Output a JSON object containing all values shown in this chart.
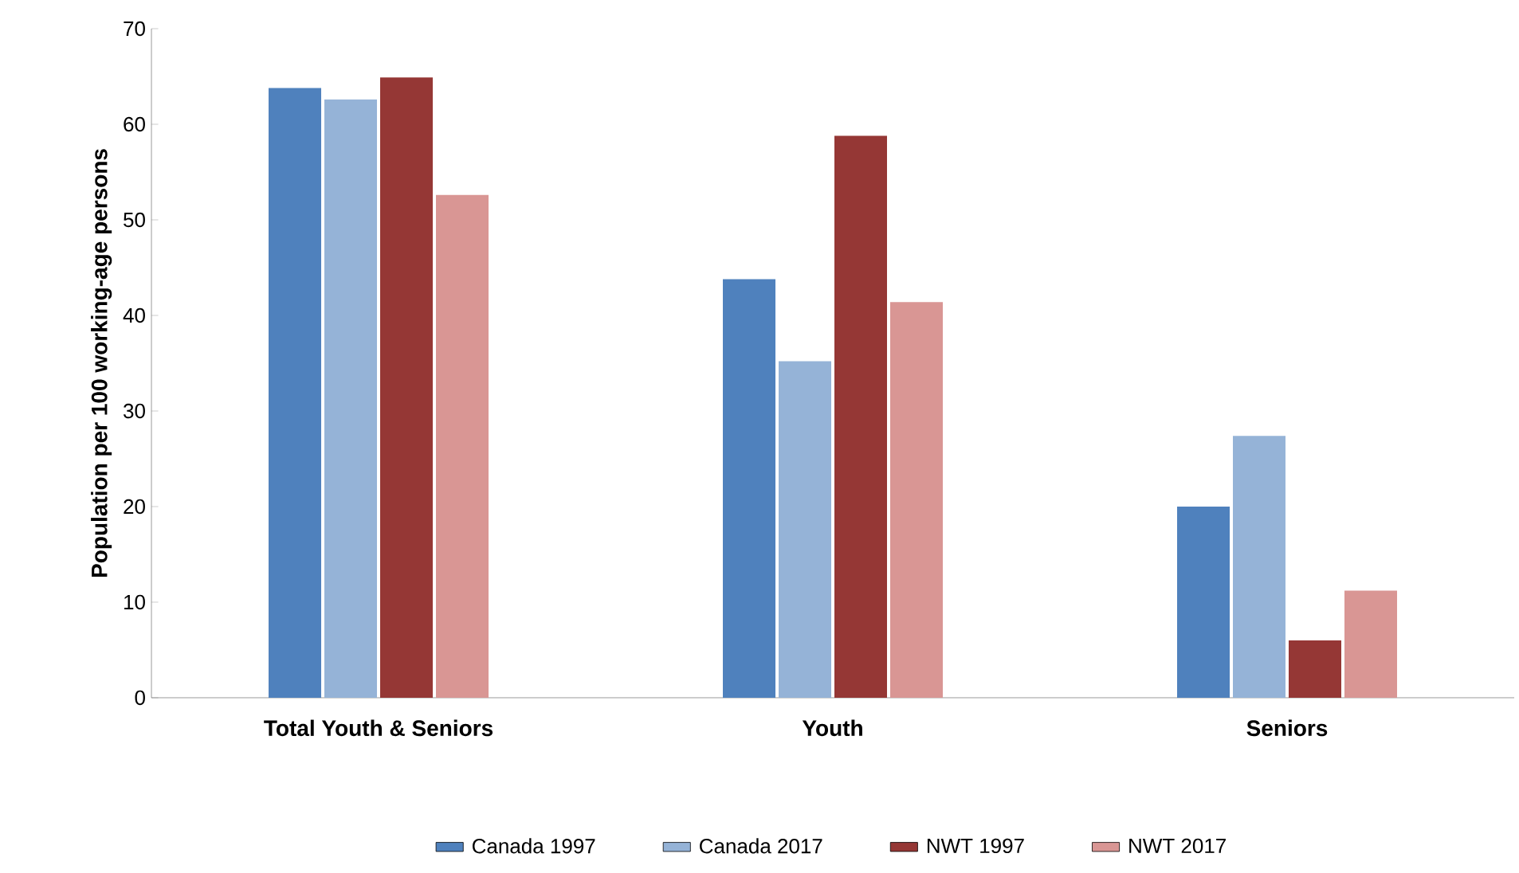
{
  "chart_data": {
    "type": "bar",
    "ylabel": "Population per 100 working-age persons",
    "categories": [
      "Total Youth & Seniors",
      "Youth",
      "Seniors"
    ],
    "series": [
      {
        "name": "Canada 1997",
        "color": "#4f81bd",
        "values": [
          63.8,
          43.8,
          20
        ]
      },
      {
        "name": "Canada 2017",
        "color": "#95b3d7",
        "values": [
          62.6,
          35.2,
          27.4
        ]
      },
      {
        "name": "NWT 1997",
        "color": "#953735",
        "values": [
          64.9,
          58.8,
          6
        ]
      },
      {
        "name": "NWT 2017",
        "color": "#d99694",
        "values": [
          52.6,
          41.4,
          11.2
        ]
      }
    ],
    "ylim": [
      0,
      70
    ],
    "yticks": [
      0,
      10,
      20,
      30,
      40,
      50,
      60,
      70
    ],
    "grid": false,
    "legend": "bottom"
  }
}
